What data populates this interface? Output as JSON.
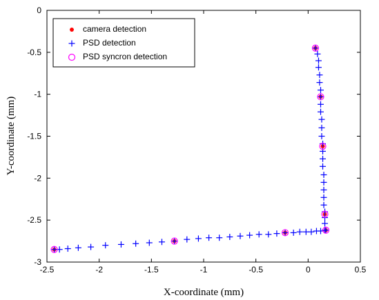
{
  "chart_data": {
    "type": "scatter",
    "title": "",
    "xlabel": "X-coordinate (mm)",
    "ylabel": "Y-coordinate (mm)",
    "xlim": [
      -2.5,
      0.5
    ],
    "ylim": [
      -3,
      0
    ],
    "xticks": [
      -2.5,
      -2,
      -1.5,
      -1,
      -0.5,
      0,
      0.5
    ],
    "yticks": [
      0,
      -0.5,
      -1,
      -1.5,
      -2,
      -2.5,
      -3
    ],
    "xtick_labels": [
      "-2.5",
      "-2",
      "-1.5",
      "-1",
      "-0.5",
      "0",
      "0.5"
    ],
    "ytick_labels": [
      "0",
      "-0.5",
      "-1",
      "-1.5",
      "-2",
      "-2.5",
      "-3"
    ],
    "grid": false,
    "legend_position": "top-left",
    "series": [
      {
        "name": "camera detection",
        "marker": "star",
        "color": "#ff0000",
        "x": [
          0.07,
          0.12,
          0.14,
          0.16,
          0.17,
          -0.22,
          -1.28,
          -2.43
        ],
        "y": [
          -0.45,
          -1.03,
          -1.62,
          -2.43,
          -2.62,
          -2.65,
          -2.75,
          -2.85
        ]
      },
      {
        "name": "PSD detection",
        "marker": "plus",
        "color": "#0000ff",
        "x": [
          0.07,
          0.09,
          0.1,
          0.1,
          0.11,
          0.11,
          0.12,
          0.12,
          0.12,
          0.12,
          0.13,
          0.13,
          0.13,
          0.14,
          0.14,
          0.14,
          0.14,
          0.15,
          0.15,
          0.15,
          0.15,
          0.15,
          0.16,
          0.16,
          0.16,
          0.17,
          0.16,
          0.12,
          0.08,
          0.03,
          -0.02,
          -0.08,
          -0.14,
          -0.22,
          -0.3,
          -0.38,
          -0.47,
          -0.56,
          -0.65,
          -0.75,
          -0.85,
          -0.95,
          -1.05,
          -1.16,
          -1.28,
          -1.4,
          -1.52,
          -1.65,
          -1.79,
          -1.94,
          -2.08,
          -2.2,
          -2.3,
          -2.38,
          -2.43
        ],
        "y": [
          -0.45,
          -0.52,
          -0.6,
          -0.68,
          -0.77,
          -0.86,
          -0.95,
          -1.03,
          -1.12,
          -1.21,
          -1.3,
          -1.4,
          -1.5,
          -1.59,
          -1.68,
          -1.77,
          -1.86,
          -1.96,
          -2.05,
          -2.14,
          -2.23,
          -2.32,
          -2.4,
          -2.47,
          -2.54,
          -2.62,
          -2.62,
          -2.63,
          -2.63,
          -2.64,
          -2.64,
          -2.64,
          -2.65,
          -2.65,
          -2.66,
          -2.67,
          -2.67,
          -2.68,
          -2.69,
          -2.7,
          -2.71,
          -2.71,
          -2.72,
          -2.73,
          -2.75,
          -2.76,
          -2.77,
          -2.78,
          -2.79,
          -2.8,
          -2.82,
          -2.83,
          -2.84,
          -2.85,
          -2.85
        ]
      },
      {
        "name": "PSD syncron detection",
        "marker": "circle",
        "color": "#ff00ff",
        "x": [
          0.07,
          0.12,
          0.14,
          0.16,
          0.17,
          -0.22,
          -1.28,
          -2.43
        ],
        "y": [
          -0.45,
          -1.03,
          -1.62,
          -2.43,
          -2.62,
          -2.65,
          -2.75,
          -2.85
        ]
      }
    ]
  }
}
